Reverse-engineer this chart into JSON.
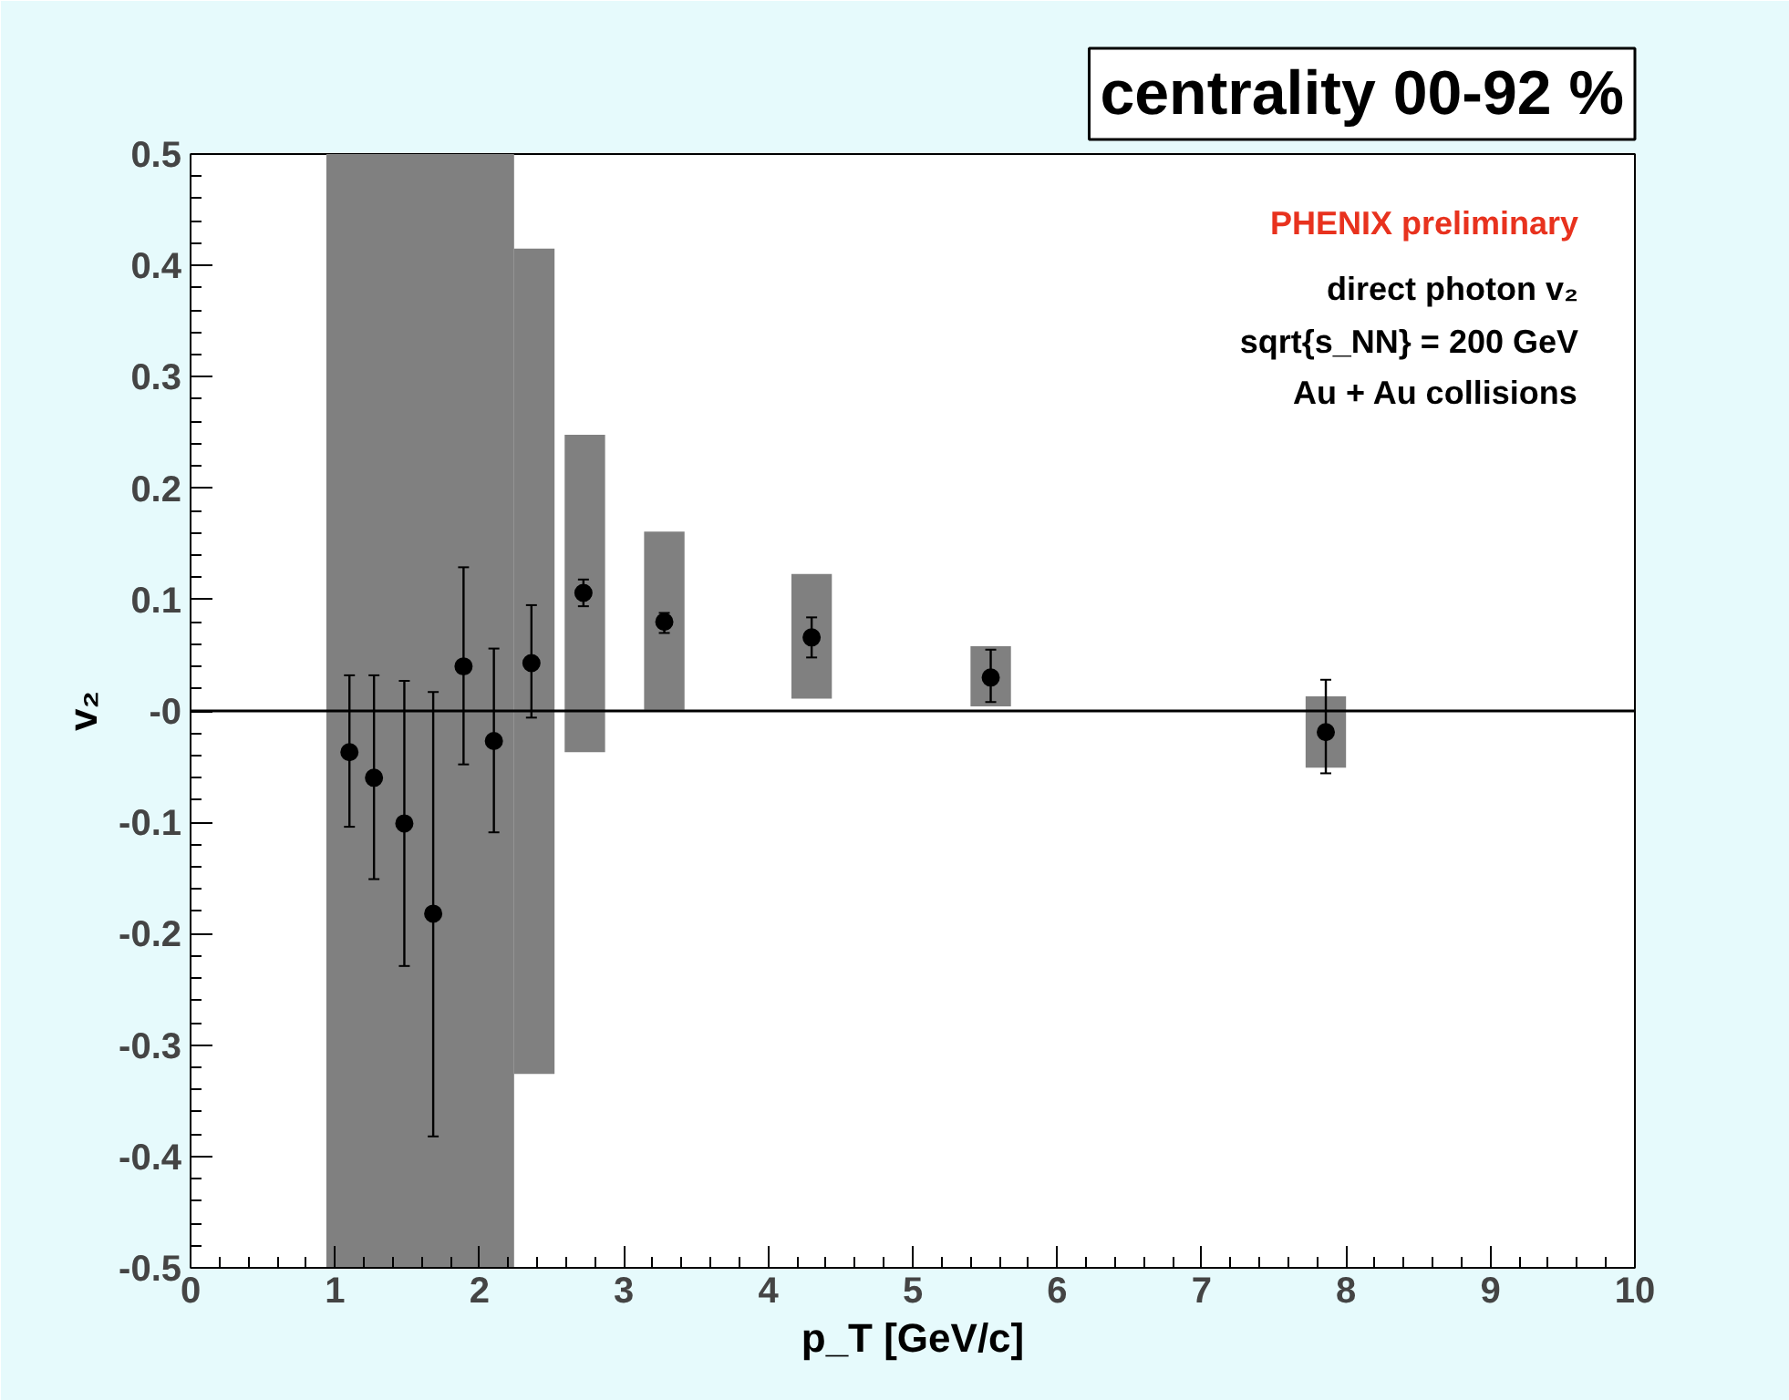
{
  "chart_data": {
    "type": "scatter",
    "title": "centrality 00-92 %",
    "xlabel": "p_T [GeV/c]",
    "ylabel": "v₂",
    "annotations": [
      "PHENIX preliminary",
      "direct photon v₂",
      "sqrt{s_NN} = 200 GeV",
      "Au + Au collisions"
    ],
    "series": [
      {
        "type": "bar",
        "color": "#808080",
        "x": [
          1.08,
          1.34,
          1.6,
          1.86,
          2.1,
          2.38,
          2.73,
          3.28,
          4.3,
          5.54,
          7.86
        ],
        "base": [
          -0.5,
          -0.5,
          -0.5,
          -0.5,
          -0.5,
          -0.326,
          -0.037,
          0.001,
          0.011,
          0.004,
          -0.051
        ],
        "values": [
          1.0,
          1.0,
          1.0,
          1.0,
          1.0,
          0.741,
          0.285,
          0.16,
          0.112,
          0.054,
          0.064
        ]
      },
      {
        "color": "#000000",
        "x": [
          1.1,
          1.27,
          1.48,
          1.68,
          1.89,
          2.1,
          2.36,
          2.72,
          3.28,
          4.3,
          5.54,
          7.86
        ],
        "values": [
          -0.037,
          -0.06,
          -0.101,
          -0.182,
          0.04,
          -0.027,
          0.043,
          0.106,
          0.08,
          0.066,
          0.03,
          -0.019
        ],
        "errors": [
          [
            -0.104,
            0.032
          ],
          [
            -0.151,
            0.032
          ],
          [
            -0.229,
            0.027
          ],
          [
            -0.382,
            0.017
          ],
          [
            -0.048,
            0.129
          ],
          [
            -0.109,
            0.056
          ],
          [
            -0.006,
            0.095
          ],
          [
            0.094,
            0.118
          ],
          [
            0.07,
            0.088
          ],
          [
            0.048,
            0.084
          ],
          [
            0.008,
            0.055
          ],
          [
            -0.056,
            0.028
          ]
        ]
      }
    ],
    "xlim": [
      0,
      10
    ],
    "xticks": [
      0,
      1,
      2,
      3,
      4,
      5,
      6,
      7,
      8,
      9,
      10
    ],
    "ylim": [
      -0.5,
      0.5
    ],
    "yticks": [
      -0.5,
      -0.4,
      -0.3,
      -0.2,
      -0.1,
      {
        "value": 0,
        "label": "-0"
      },
      0.1,
      0.2,
      0.3,
      0.4,
      0.5
    ],
    "ref_lines": [
      {
        "axis": "y",
        "value": 0
      }
    ],
    "marker": "circle",
    "grid": false
  }
}
